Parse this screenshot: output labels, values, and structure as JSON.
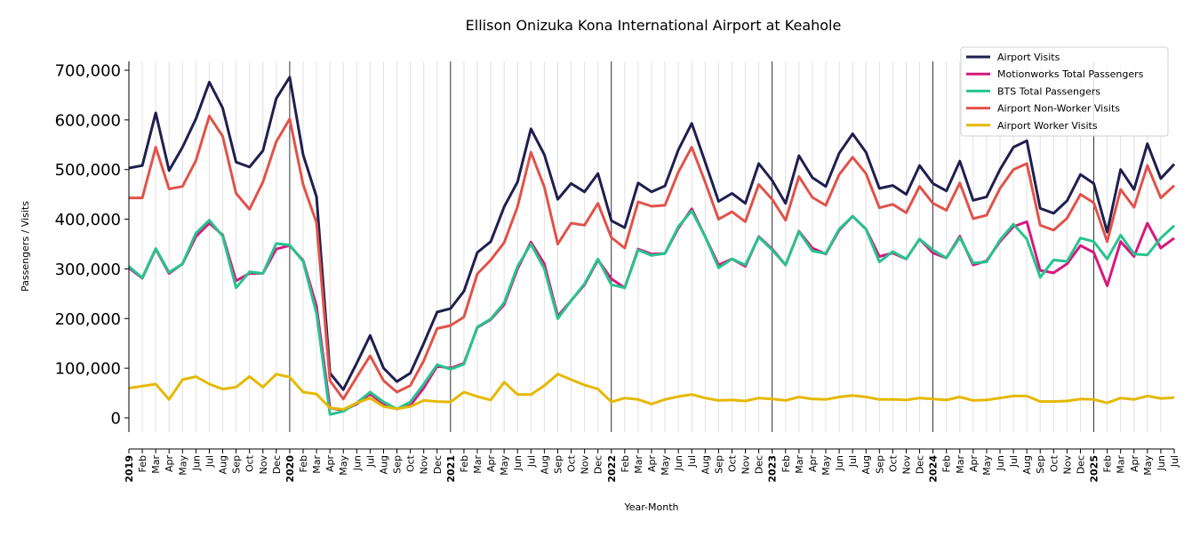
{
  "chart_data": {
    "type": "line",
    "title": "Ellison Onizuka Kona International Airport at Keahole",
    "xlabel": "Year-Month",
    "ylabel": "Passengers / Visits",
    "ylim": [
      -30000,
      720000
    ],
    "yticks": [
      0,
      100000,
      200000,
      300000,
      400000,
      500000,
      600000,
      700000
    ],
    "ytick_labels": [
      "0",
      "100,000",
      "200,000",
      "300,000",
      "400,000",
      "500,000",
      "600,000",
      "700,000"
    ],
    "grid": "vertical, monthly",
    "legend_position": "top-right",
    "x": [
      "2019",
      "Feb",
      "Mar",
      "Apr",
      "May",
      "Jun",
      "Jul",
      "Aug",
      "Sep",
      "Oct",
      "Nov",
      "Dec",
      "2020",
      "Feb",
      "Mar",
      "Apr",
      "May",
      "Jun",
      "Jul",
      "Aug",
      "Sep",
      "Oct",
      "Nov",
      "Dec",
      "2021",
      "Feb",
      "Mar",
      "Apr",
      "May",
      "Jun",
      "Jul",
      "Aug",
      "Sep",
      "Oct",
      "Nov",
      "Dec",
      "2022",
      "Feb",
      "Mar",
      "Apr",
      "May",
      "Jun",
      "Jul",
      "Aug",
      "Sep",
      "Oct",
      "Nov",
      "Dec",
      "2023",
      "Feb",
      "Mar",
      "Apr",
      "May",
      "Jun",
      "Jul",
      "Aug",
      "Sep",
      "Oct",
      "Nov",
      "Dec",
      "2024",
      "Feb",
      "Mar",
      "Apr",
      "May",
      "Jun",
      "Jul",
      "Aug",
      "Sep",
      "Oct",
      "Nov",
      "Dec",
      "2025",
      "Feb",
      "Mar",
      "Apr",
      "May",
      "Jun",
      "Jul"
    ],
    "series": [
      {
        "name": "Airport Visits",
        "color": "#1f1f4f",
        "values": [
          503000,
          508000,
          614000,
          498000,
          545000,
          602000,
          676000,
          624000,
          515000,
          505000,
          538000,
          643000,
          686000,
          530000,
          445000,
          90000,
          57000,
          110000,
          166000,
          100000,
          73000,
          90000,
          150000,
          213000,
          220000,
          255000,
          333000,
          355000,
          425000,
          475000,
          582000,
          530000,
          440000,
          472000,
          455000,
          492000,
          397000,
          383000,
          473000,
          455000,
          467000,
          540000,
          593000,
          515000,
          436000,
          452000,
          432000,
          512000,
          478000,
          432000,
          528000,
          484000,
          466000,
          533000,
          572000,
          535000,
          462000,
          468000,
          450000,
          508000,
          472000,
          457000,
          517000,
          438000,
          445000,
          500000,
          545000,
          558000,
          422000,
          412000,
          437000,
          490000,
          472000,
          374000,
          500000,
          460000,
          552000,
          482000,
          511000
        ]
      },
      {
        "name": "Motionworks Total Passengers",
        "color": "#d6197f",
        "values": [
          302000,
          281000,
          340000,
          291000,
          310000,
          365000,
          392000,
          368000,
          276000,
          291000,
          291000,
          340000,
          347000,
          317000,
          225000,
          20000,
          15000,
          28000,
          48000,
          28000,
          18000,
          25000,
          60000,
          104000,
          100000,
          110000,
          182000,
          198000,
          228000,
          300000,
          354000,
          310000,
          205000,
          236000,
          268000,
          318000,
          280000,
          262000,
          340000,
          330000,
          331000,
          382000,
          421000,
          365000,
          308000,
          320000,
          305000,
          365000,
          340000,
          308000,
          376000,
          342000,
          330000,
          378000,
          406000,
          380000,
          325000,
          332000,
          320000,
          360000,
          332000,
          322000,
          366000,
          308000,
          316000,
          355000,
          385000,
          395000,
          297000,
          292000,
          310000,
          347000,
          333000,
          266000,
          355000,
          325000,
          392000,
          342000,
          362000
        ]
      },
      {
        "name": "BTS Total Passengers",
        "color": "#26c48f",
        "values": [
          305000,
          282000,
          341000,
          293000,
          310000,
          372000,
          398000,
          366000,
          262000,
          294000,
          291000,
          351000,
          348000,
          315000,
          210000,
          7000,
          13000,
          30000,
          52000,
          32000,
          18000,
          32000,
          68000,
          107000,
          98000,
          108000,
          183000,
          199000,
          232000,
          305000,
          350000,
          300000,
          200000,
          236000,
          270000,
          320000,
          268000,
          262000,
          338000,
          327000,
          331000,
          385000,
          417000,
          365000,
          302000,
          320000,
          308000,
          364000,
          338000,
          308000,
          375000,
          336000,
          331000,
          380000,
          406000,
          380000,
          314000,
          335000,
          320000,
          360000,
          338000,
          322000,
          363000,
          312000,
          314000,
          358000,
          390000,
          360000,
          283000,
          318000,
          315000,
          362000,
          355000,
          320000,
          368000,
          330000,
          328000,
          362000,
          387000
        ]
      },
      {
        "name": "Airport Non-Worker Visits",
        "color": "#e0534a",
        "values": [
          443000,
          443000,
          545000,
          461000,
          466000,
          518000,
          608000,
          567000,
          452000,
          420000,
          475000,
          556000,
          602000,
          470000,
          393000,
          75000,
          38000,
          82000,
          125000,
          75000,
          52000,
          65000,
          115000,
          180000,
          186000,
          203000,
          290000,
          318000,
          353000,
          425000,
          535000,
          465000,
          350000,
          392000,
          388000,
          432000,
          363000,
          342000,
          435000,
          426000,
          428000,
          495000,
          545000,
          475000,
          400000,
          415000,
          395000,
          470000,
          440000,
          398000,
          486000,
          444000,
          428000,
          490000,
          525000,
          492000,
          423000,
          430000,
          413000,
          466000,
          432000,
          418000,
          473000,
          401000,
          408000,
          462000,
          500000,
          512000,
          388000,
          378000,
          402000,
          450000,
          433000,
          355000,
          460000,
          424000,
          508000,
          443000,
          468000
        ]
      },
      {
        "name": "Airport Worker Visits",
        "color": "#e6b800",
        "values": [
          60000,
          64000,
          68000,
          37000,
          77000,
          83000,
          68000,
          58000,
          62000,
          83000,
          62000,
          88000,
          82000,
          52000,
          48000,
          20000,
          17000,
          30000,
          40000,
          23000,
          18000,
          23000,
          35000,
          33000,
          32000,
          52000,
          43000,
          36000,
          72000,
          47000,
          47000,
          65000,
          88000,
          77000,
          66000,
          58000,
          32000,
          40000,
          37000,
          28000,
          37000,
          43000,
          47000,
          40000,
          35000,
          36000,
          34000,
          40000,
          38000,
          35000,
          42000,
          38000,
          37000,
          42000,
          45000,
          42000,
          37000,
          37000,
          36000,
          40000,
          38000,
          36000,
          42000,
          35000,
          36000,
          40000,
          44000,
          44000,
          33000,
          33000,
          34000,
          38000,
          37000,
          30000,
          40000,
          37000,
          44000,
          39000,
          41000
        ]
      }
    ]
  }
}
